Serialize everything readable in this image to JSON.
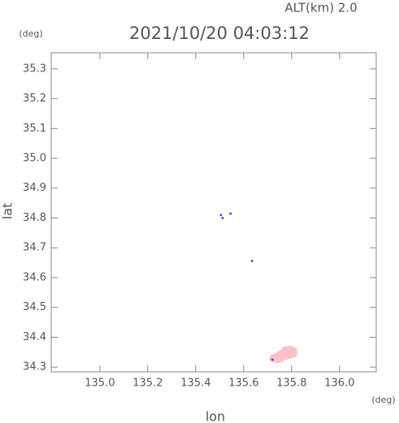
{
  "chart_data": {
    "type": "scatter",
    "title": "2021/10/20 04:03:12",
    "annotation": "ALT(km) 2.0",
    "y_unit": "(deg)",
    "x_unit": "(deg)",
    "xlabel": "lon",
    "ylabel": "lat",
    "xlim": [
      134.797,
      136.153
    ],
    "ylim": [
      34.284,
      35.354
    ],
    "xticks": [
      {
        "value": 135.0,
        "label": "135.0"
      },
      135.2,
      135.4,
      135.6,
      135.8,
      {
        "value": 136.0,
        "label": "136.0"
      }
    ],
    "yticks": [
      34.3,
      34.4,
      34.5,
      34.6,
      34.7,
      34.8,
      34.9,
      {
        "value": 35.0,
        "label": "35.0"
      },
      35.1,
      35.2,
      35.3
    ],
    "series": [
      {
        "color": "#ffc0c8",
        "x": [
          135.74,
          135.765,
          135.79,
          135.79
        ],
        "values": [
          34.33,
          34.34,
          34.345,
          34.355
        ]
      },
      {
        "color": "#5050e0",
        "x": [
          135.505,
          135.512,
          135.545,
          135.635,
          135.72
        ],
        "values": [
          34.81,
          34.8,
          34.815,
          34.656,
          34.325
        ]
      }
    ]
  }
}
